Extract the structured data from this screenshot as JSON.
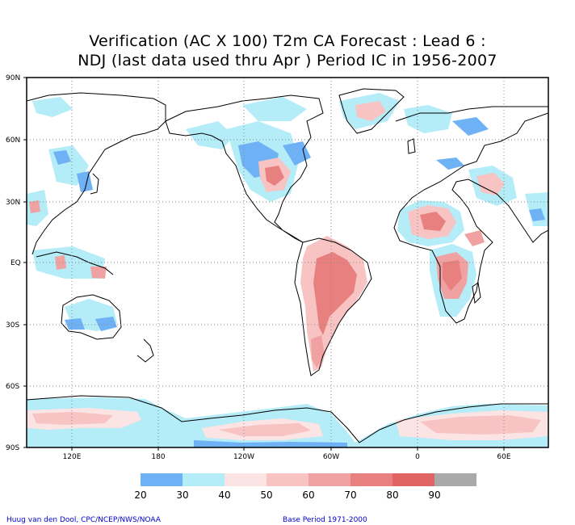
{
  "title": {
    "line1": "Verification (AC X 100) T2m CA Forecast : Lead 6 :",
    "line2": "NDJ (last data used thru Apr ) Period IC in 1956-2007"
  },
  "lat_ticks": [
    "90N",
    "60N",
    "30N",
    "EQ",
    "30S",
    "60S",
    "90S"
  ],
  "lon_ticks": [
    "120E",
    "180",
    "120W",
    "60W",
    "0",
    "60E"
  ],
  "legend": {
    "labels": [
      "20",
      "30",
      "40",
      "50",
      "60",
      "70",
      "80",
      "90"
    ],
    "colors": [
      "#6eb1f5",
      "#b4ecf8",
      "#fde4e4",
      "#f7c3c3",
      "#f0a2a2",
      "#e98080",
      "#e06464",
      "#a9a9a9"
    ]
  },
  "credits": {
    "left": "Huug van den Dool, CPC/NCEP/NWS/NOAA",
    "right": "Base Period 1971-2000"
  },
  "shading_colors": {
    "c20": "#6eb1f5",
    "c30": "#b4ecf8",
    "c40": "#fde4e4",
    "c50": "#f7c3c3",
    "c60": "#f0a2a2",
    "c70": "#e98080",
    "c80": "#e06464"
  }
}
